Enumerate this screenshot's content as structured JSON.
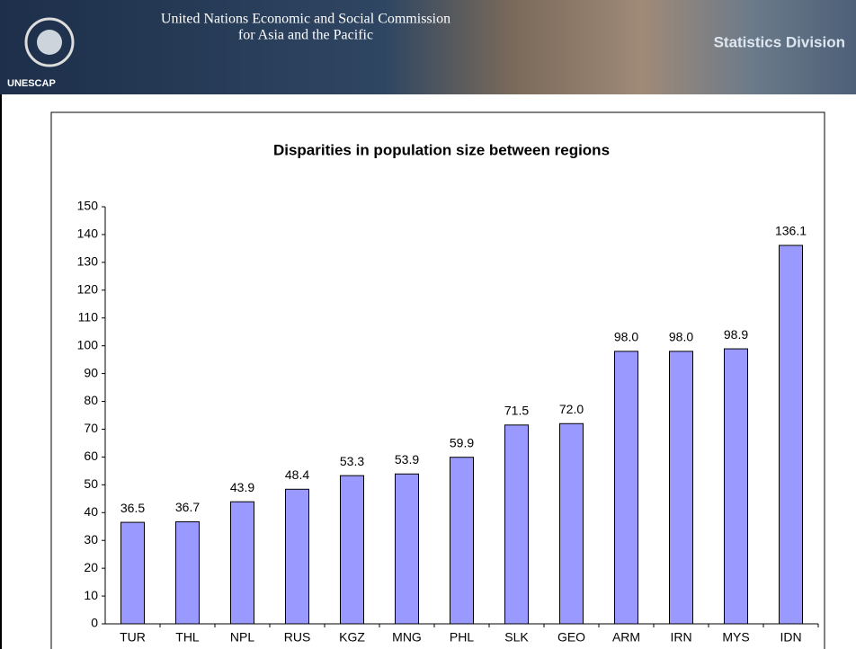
{
  "header": {
    "org_line1": "United Nations Economic and Social Commission",
    "org_line2": "for Asia and the Pacific",
    "division": "Statistics Division",
    "logo_text": "UNESCAP"
  },
  "chart_data": {
    "type": "bar",
    "title": "Disparities in population size between regions",
    "categories": [
      "TUR",
      "THL",
      "NPL",
      "RUS",
      "KGZ",
      "MNG",
      "PHL",
      "SLK",
      "GEO",
      "ARM",
      "IRN",
      "MYS",
      "IDN"
    ],
    "values": [
      36.5,
      36.7,
      43.9,
      48.4,
      53.3,
      53.9,
      59.9,
      71.5,
      72.0,
      98.0,
      98.0,
      98.9,
      136.1
    ],
    "value_labels": [
      "36.5",
      "36.7",
      "43.9",
      "48.4",
      "53.3",
      "53.9",
      "59.9",
      "71.5",
      "72.0",
      "98.0",
      "98.0",
      "98.9",
      "136.1"
    ],
    "color": "#9999ff",
    "ylim": [
      0,
      150
    ],
    "yticks": [
      0,
      10,
      20,
      30,
      40,
      50,
      60,
      70,
      80,
      90,
      100,
      110,
      120,
      130,
      140,
      150
    ],
    "grid": false
  }
}
